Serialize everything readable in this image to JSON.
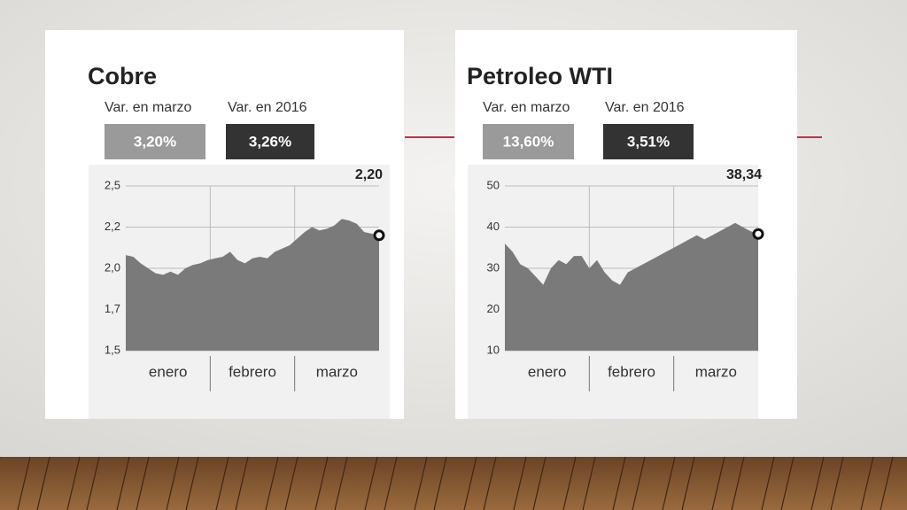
{
  "chart_data": [
    {
      "type": "area",
      "title": "Cobre",
      "stats": [
        {
          "label": "Var. en marzo",
          "value": "3,20%"
        },
        {
          "label": "Var. en 2016",
          "value": "3,26%"
        }
      ],
      "months": [
        "enero",
        "febrero",
        "marzo"
      ],
      "series": [
        {
          "color": "#7a7a7a",
          "values": [
            2.08,
            2.07,
            2.03,
            2.0,
            1.97,
            1.96,
            1.98,
            1.96,
            2.0,
            2.02,
            2.03,
            2.05,
            2.06,
            2.07,
            2.1,
            2.05,
            2.03,
            2.06,
            2.07,
            2.06,
            2.1,
            2.12,
            2.14,
            2.18,
            2.22,
            2.25,
            2.23,
            2.24,
            2.26,
            2.3,
            2.29,
            2.27,
            2.22,
            2.21,
            2.2
          ]
        }
      ],
      "end_label": "2,20",
      "ylim": [
        1.5,
        2.5
      ],
      "yticks": [
        {
          "value": 1.5,
          "label": "1,5"
        },
        {
          "value": 1.75,
          "label": "1,7"
        },
        {
          "value": 2.0,
          "label": "2,0"
        },
        {
          "value": 2.25,
          "label": "2,2"
        },
        {
          "value": 2.5,
          "label": "2,5"
        }
      ],
      "grid": true
    },
    {
      "type": "area",
      "title": "Petroleo WTI",
      "stats": [
        {
          "label": "Var. en marzo",
          "value": "13,60%"
        },
        {
          "label": "Var. en 2016",
          "value": "3,51%"
        }
      ],
      "months": [
        "enero",
        "febrero",
        "marzo"
      ],
      "series": [
        {
          "color": "#7a7a7a",
          "values": [
            36,
            34,
            31,
            30,
            28,
            26,
            30,
            32,
            31,
            33,
            33,
            30,
            32,
            29,
            27,
            26,
            29,
            30,
            31,
            32,
            33,
            34,
            35,
            36,
            37,
            38,
            37,
            38,
            39,
            40,
            41,
            40,
            39,
            38.34
          ]
        }
      ],
      "end_label": "38,34",
      "ylim": [
        10,
        50
      ],
      "yticks": [
        10,
        20,
        30,
        40,
        50
      ],
      "grid": true
    }
  ]
}
